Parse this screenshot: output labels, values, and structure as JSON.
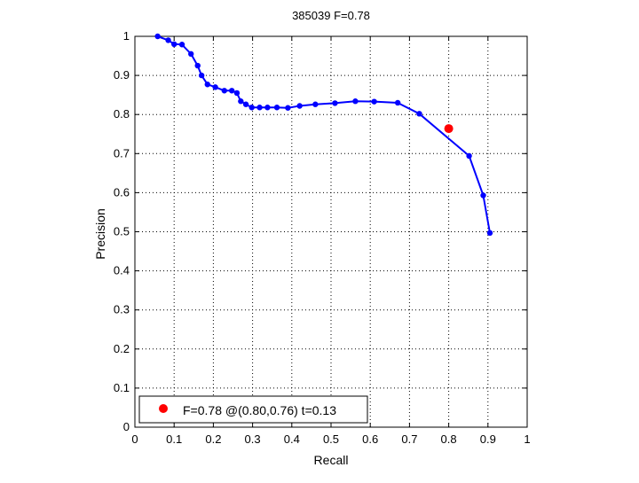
{
  "chart_data": {
    "type": "line",
    "title": "385039 F=0.78",
    "xlabel": "Recall",
    "ylabel": "Precision",
    "xlim": [
      0,
      1
    ],
    "ylim": [
      0,
      1
    ],
    "grid": true,
    "x_ticks": [
      "0",
      "0.1",
      "0.2",
      "0.3",
      "0.4",
      "0.5",
      "0.6",
      "0.7",
      "0.8",
      "0.9",
      "1"
    ],
    "y_ticks": [
      "0",
      "0.1",
      "0.2",
      "0.3",
      "0.4",
      "0.5",
      "0.6",
      "0.7",
      "0.8",
      "0.9",
      "1"
    ],
    "legend_position": "bottom-left",
    "colors": {
      "curve": "#0000ff",
      "marker": "#ff0000"
    },
    "series": [
      {
        "x": [
          0.058,
          0.085,
          0.1,
          0.12,
          0.143,
          0.16,
          0.17,
          0.185,
          0.205,
          0.228,
          0.247,
          0.26,
          0.27,
          0.283,
          0.298,
          0.318,
          0.338,
          0.362,
          0.39,
          0.42,
          0.46,
          0.51,
          0.562,
          0.61,
          0.67,
          0.725,
          0.852,
          0.888,
          0.905
        ],
        "y": [
          1.0,
          0.99,
          0.98,
          0.979,
          0.955,
          0.925,
          0.9,
          0.877,
          0.87,
          0.861,
          0.861,
          0.855,
          0.834,
          0.826,
          0.818,
          0.818,
          0.818,
          0.818,
          0.817,
          0.822,
          0.826,
          0.829,
          0.834,
          0.833,
          0.83,
          0.802,
          0.694,
          0.593,
          0.497
        ]
      },
      {
        "name": "F=0.78 @(0.80,0.76) t=0.13",
        "x": [
          0.8
        ],
        "y": [
          0.764
        ]
      }
    ]
  }
}
